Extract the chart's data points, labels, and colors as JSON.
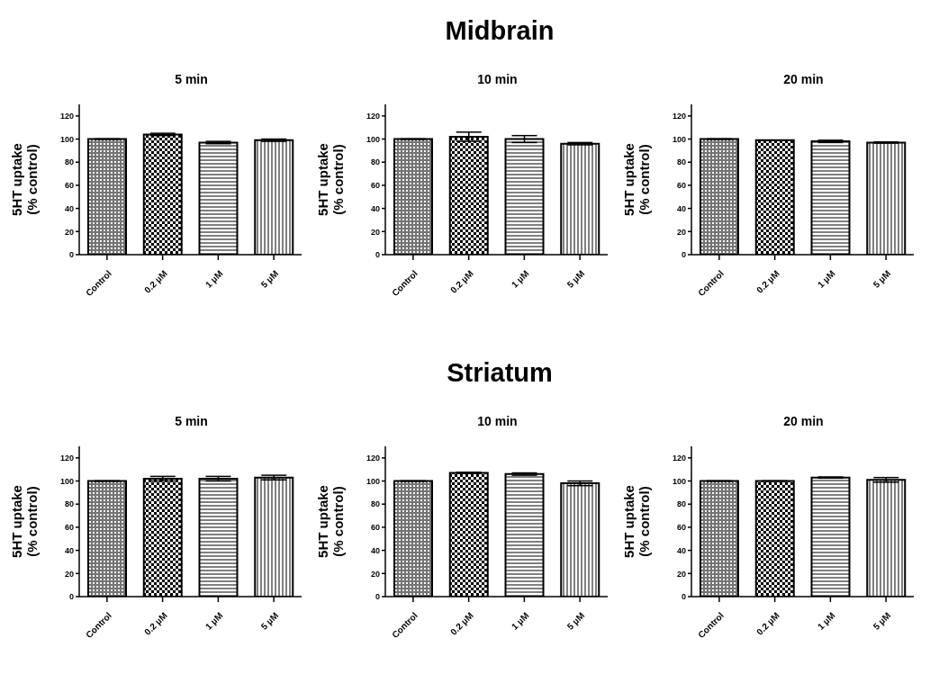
{
  "chart_data": [
    {
      "type": "bar",
      "title": "5 min",
      "annotations": [
        "Midbrain"
      ],
      "ylabel": "5HT uptake\n(% control)",
      "categories": [
        "Control",
        "0.2 µM",
        "1 µM",
        "5 µM"
      ],
      "values": [
        100,
        104,
        97,
        99
      ],
      "errors": [
        null,
        1,
        1,
        1
      ],
      "colors": [
        "#000000",
        "#000000",
        "#000000",
        "#000000"
      ],
      "ylim": [
        0,
        130
      ],
      "yticks": [
        0,
        20,
        40,
        60,
        80,
        100,
        120
      ]
    },
    {
      "type": "bar",
      "title": "10 min",
      "ylabel": "5HT uptake\n(% control)",
      "categories": [
        "Control",
        "0.2 µM",
        "1 µM",
        "5 µM"
      ],
      "values": [
        100,
        102,
        100,
        96
      ],
      "errors": [
        null,
        4,
        3,
        1
      ],
      "colors": [
        "#000000",
        "#000000",
        "#000000",
        "#000000"
      ],
      "ylim": [
        0,
        130
      ],
      "yticks": [
        0,
        20,
        40,
        60,
        80,
        100,
        120
      ]
    },
    {
      "type": "bar",
      "title": "20 min",
      "ylabel": "5HT uptake\n(% control)",
      "categories": [
        "Control",
        "0.2 µM",
        "1 µM",
        "5 µM"
      ],
      "values": [
        100,
        99,
        98,
        97
      ],
      "errors": [
        null,
        null,
        1,
        0.5
      ],
      "colors": [
        "#000000",
        "#000000",
        "#000000",
        "#000000"
      ],
      "ylim": [
        0,
        130
      ],
      "yticks": [
        0,
        20,
        40,
        60,
        80,
        100,
        120
      ]
    },
    {
      "type": "bar",
      "title": "5 min",
      "annotations": [
        "Striatum"
      ],
      "ylabel": "5HT uptake\n(% control)",
      "categories": [
        "Control",
        "0.2 µM",
        "1 µM",
        "5 µM"
      ],
      "values": [
        100,
        102,
        102,
        103
      ],
      "errors": [
        null,
        2,
        2,
        2
      ],
      "colors": [
        "#000000",
        "#000000",
        "#000000",
        "#000000"
      ],
      "ylim": [
        0,
        130
      ],
      "yticks": [
        0,
        20,
        40,
        60,
        80,
        100,
        120
      ]
    },
    {
      "type": "bar",
      "title": "10 min",
      "ylabel": "5HT uptake\n(% control)",
      "categories": [
        "Control",
        "0.2 µM",
        "1 µM",
        "5 µM"
      ],
      "values": [
        100,
        107,
        106,
        98
      ],
      "errors": [
        null,
        0.5,
        1,
        2
      ],
      "colors": [
        "#000000",
        "#000000",
        "#000000",
        "#000000"
      ],
      "ylim": [
        0,
        130
      ],
      "yticks": [
        0,
        20,
        40,
        60,
        80,
        100,
        120
      ]
    },
    {
      "type": "bar",
      "title": "20 min",
      "ylabel": "5HT uptake\n(% control)",
      "categories": [
        "Control",
        "0.2 µM",
        "1 µM",
        "5 µM"
      ],
      "values": [
        100,
        100,
        103,
        101
      ],
      "errors": [
        null,
        null,
        0.5,
        2
      ],
      "colors": [
        "#000000",
        "#000000",
        "#000000",
        "#000000"
      ],
      "ylim": [
        0,
        130
      ],
      "yticks": [
        0,
        20,
        40,
        60,
        80,
        100,
        120
      ]
    }
  ]
}
